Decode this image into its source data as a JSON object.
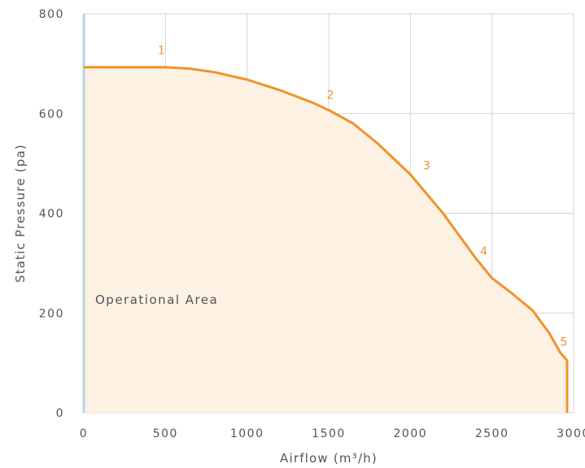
{
  "chart_data": {
    "type": "area",
    "title": "",
    "xlabel": "Airflow (m³/h)",
    "ylabel": "Static Pressure (pa)",
    "xlim": [
      0,
      3000
    ],
    "ylim": [
      0,
      800
    ],
    "x_ticks": [
      "0",
      "500",
      "1000",
      "1500",
      "2000",
      "2500",
      "3000"
    ],
    "y_ticks": [
      "0",
      "200",
      "400",
      "600",
      "800"
    ],
    "grid": true,
    "area_label": "Operational Area",
    "series": [
      {
        "x": [
          0,
          250,
          500,
          650,
          800,
          1000,
          1200,
          1400,
          1500,
          1650,
          1800,
          2000,
          2200,
          2400,
          2500,
          2620,
          2750,
          2850,
          2920,
          2960,
          2960
        ],
        "y": [
          693,
          693,
          693,
          690,
          683,
          668,
          647,
          622,
          607,
          580,
          540,
          478,
          400,
          310,
          270,
          240,
          205,
          160,
          120,
          105,
          0
        ]
      }
    ],
    "marked_points": [
      {
        "label": "1",
        "x": 500,
        "y": 693
      },
      {
        "label": "2",
        "x": 1500,
        "y": 607
      },
      {
        "label": "3",
        "x": 2050,
        "y": 465
      },
      {
        "label": "4",
        "x": 2450,
        "y": 290
      },
      {
        "label": "5",
        "x": 2950,
        "y": 115
      }
    ],
    "colors": {
      "line": "#f0922b",
      "fill": "#fdf1e3",
      "grid": "#d4d4d4",
      "y_axis": "#b9d3e6",
      "text": "#555555"
    }
  }
}
